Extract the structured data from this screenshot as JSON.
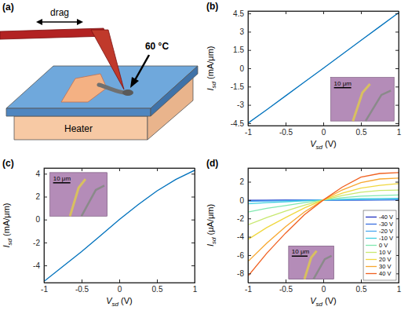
{
  "diagram": {
    "label": "(a)",
    "drag": "drag",
    "temperature": "60 °C",
    "heater": "Heater"
  },
  "chart_data": [
    {
      "type": "line",
      "panel": "(b)",
      "x_label": "Vsd (V)",
      "y_label": "Isd (mA/μm)",
      "x": [
        -1,
        -0.75,
        -0.5,
        -0.25,
        0,
        0.25,
        0.5,
        0.75,
        1
      ],
      "values": [
        -4.5,
        -3.39,
        -2.26,
        -1.13,
        0,
        1.14,
        2.28,
        3.42,
        4.56
      ],
      "color": "#0072bd",
      "xlim": [
        -1,
        1
      ],
      "xticks": [
        -1,
        -0.5,
        0,
        0.5,
        1
      ],
      "ylim": [
        -4.7,
        4.7
      ],
      "yticks": [
        -4.5,
        -3,
        -1.5,
        0,
        1.5,
        3,
        4.5
      ],
      "grid": false,
      "annotations": [
        "10 μm"
      ]
    },
    {
      "type": "line",
      "panel": "(c)",
      "x_label": "Vsd (V)",
      "y_label": "Isd (mA/μm)",
      "x": [
        -1,
        -0.75,
        -0.5,
        -0.25,
        0,
        0.25,
        0.5,
        0.75,
        1
      ],
      "values": [
        -5.4,
        -4.1,
        -2.8,
        -1.4,
        0,
        1.3,
        2.5,
        3.5,
        4.3
      ],
      "color": "#0072bd",
      "xlim": [
        -1,
        1
      ],
      "xticks": [
        -1,
        -0.5,
        0,
        0.5,
        1
      ],
      "ylim": [
        -5.5,
        4.5
      ],
      "yticks": [
        -4,
        -2,
        0,
        2,
        4
      ],
      "grid": false,
      "annotations": [
        "10 μm"
      ]
    },
    {
      "type": "line",
      "panel": "(d)",
      "x_label": "Vsd (V)",
      "y_label": "Isd (μA/μm)",
      "x": [
        -1,
        -0.75,
        -0.5,
        -0.25,
        0,
        0.25,
        0.5,
        0.75,
        1
      ],
      "series": [
        {
          "name": "-40 V",
          "color": "#2030c0",
          "values": [
            -0.03,
            -0.02,
            -0.01,
            -0.005,
            0,
            0.005,
            0.01,
            0.015,
            0.02
          ]
        },
        {
          "name": "-30 V",
          "color": "#3a6fe0",
          "values": [
            -0.06,
            -0.04,
            -0.03,
            -0.01,
            0,
            0.01,
            0.02,
            0.03,
            0.04
          ]
        },
        {
          "name": "-20 V",
          "color": "#4aa8f0",
          "values": [
            -0.15,
            -0.1,
            -0.06,
            -0.03,
            0,
            0.03,
            0.05,
            0.07,
            0.08
          ]
        },
        {
          "name": "-10 V",
          "color": "#40d0e0",
          "values": [
            -0.4,
            -0.28,
            -0.18,
            -0.08,
            0,
            0.08,
            0.14,
            0.17,
            0.2
          ]
        },
        {
          "name": "0 V",
          "color": "#80e8b0",
          "values": [
            -1.3,
            -0.9,
            -0.6,
            -0.28,
            0,
            0.25,
            0.42,
            0.5,
            0.55
          ]
        },
        {
          "name": "10 V",
          "color": "#c8e870",
          "values": [
            -2.7,
            -1.9,
            -1.2,
            -0.55,
            0,
            0.5,
            0.85,
            1.05,
            1.1
          ]
        },
        {
          "name": "20 V",
          "color": "#f0d840",
          "values": [
            -4.3,
            -3.0,
            -1.9,
            -0.85,
            0,
            0.75,
            1.3,
            1.6,
            1.8
          ]
        },
        {
          "name": "30 V",
          "color": "#f8a830",
          "values": [
            -6.7,
            -4.7,
            -2.9,
            -1.3,
            0,
            1.1,
            1.9,
            2.3,
            2.4
          ]
        },
        {
          "name": "40 V",
          "color": "#f06020",
          "values": [
            -8.3,
            -5.8,
            -3.6,
            -1.6,
            0,
            1.4,
            2.5,
            2.9,
            3.0
          ]
        }
      ],
      "xlim": [
        -1,
        1
      ],
      "xticks": [
        -1,
        -0.5,
        0,
        0.5,
        1
      ],
      "ylim": [
        -9,
        3.5
      ],
      "yticks": [
        -8,
        -6,
        -4,
        -2,
        0,
        2
      ],
      "grid": false,
      "legend": "lower right",
      "annotations": [
        "10 μm"
      ]
    }
  ]
}
